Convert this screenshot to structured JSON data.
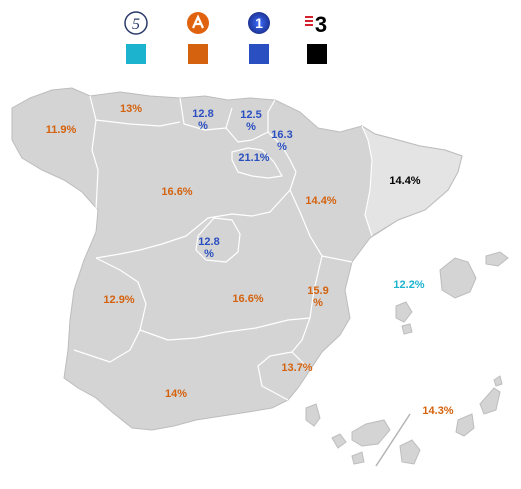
{
  "legend": {
    "channels": [
      {
        "icon": "telecinco-logo-icon",
        "color": "#1cb3cf"
      },
      {
        "icon": "antena3-logo-icon",
        "color": "#d4620e"
      },
      {
        "icon": "la1-logo-icon",
        "color": "#2a4fc0"
      },
      {
        "icon": "tv3-logo-icon",
        "color": "#000000"
      }
    ]
  },
  "regions": {
    "galicia": {
      "value": "11.9%",
      "channel_color": "#d4620e"
    },
    "asturias": {
      "value": "13%",
      "channel_color": "#d4620e"
    },
    "cantabria": {
      "value": "12.8\n%",
      "channel_color": "#2a4fc0"
    },
    "pais_vasco": {
      "value": "12.5\n%",
      "channel_color": "#2a4fc0"
    },
    "navarra": {
      "value": "16.3\n%",
      "channel_color": "#2a4fc0"
    },
    "la_rioja": {
      "value": "21.1%",
      "channel_color": "#2a4fc0"
    },
    "castilla_leon": {
      "value": "16.6%",
      "channel_color": "#d4620e"
    },
    "aragon": {
      "value": "14.4%",
      "channel_color": "#d4620e"
    },
    "cataluna": {
      "value": "14.4%",
      "channel_color": "#000000"
    },
    "madrid": {
      "value": "12.8\n%",
      "channel_color": "#2a4fc0"
    },
    "extremadura": {
      "value": "12.9%",
      "channel_color": "#d4620e"
    },
    "castilla_mancha": {
      "value": "16.6%",
      "channel_color": "#d4620e"
    },
    "valencia": {
      "value": "15.9\n%",
      "channel_color": "#d4620e"
    },
    "baleares": {
      "value": "12.2%",
      "channel_color": "#1cb3cf"
    },
    "murcia": {
      "value": "13.7%",
      "channel_color": "#d4620e"
    },
    "andalucia": {
      "value": "14%",
      "channel_color": "#d4620e"
    },
    "canarias": {
      "value": "14.3%",
      "channel_color": "#d4620e"
    }
  }
}
